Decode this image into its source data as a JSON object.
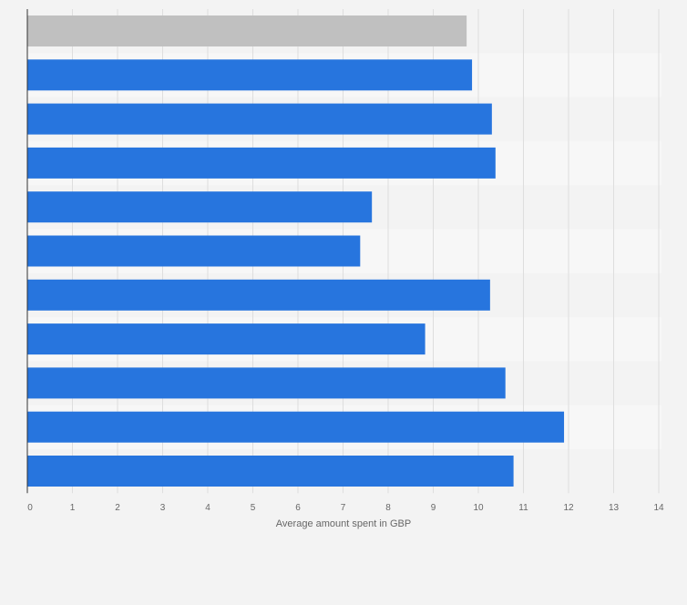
{
  "chart_data": {
    "type": "bar",
    "orientation": "horizontal",
    "title": "",
    "xlabel": "Average amount spent in GBP",
    "ylabel": "",
    "xlim": [
      0,
      14
    ],
    "ticks": [
      0,
      1,
      2,
      3,
      4,
      5,
      6,
      7,
      8,
      9,
      10,
      11,
      12,
      13,
      14
    ],
    "tick_labels": [
      "0",
      "1",
      "2",
      "3",
      "4",
      "5",
      "6",
      "7",
      "8",
      "9",
      "10",
      "11",
      "12",
      "13",
      "14"
    ],
    "categories": [
      "",
      "",
      "",
      "",
      "",
      "",
      "",
      "",
      "",
      "",
      ""
    ],
    "values": [
      9.74,
      9.86,
      10.3,
      10.38,
      7.64,
      7.38,
      10.26,
      8.82,
      10.6,
      11.9,
      10.78
    ],
    "bar_colors": [
      "#c0c0c0",
      "#2775de",
      "#2775de",
      "#2775de",
      "#2775de",
      "#2775de",
      "#2775de",
      "#2775de",
      "#2775de",
      "#2775de",
      "#2775de"
    ],
    "grid": true,
    "legend": "none"
  },
  "colors": {
    "background": "#f3f3f3",
    "band_light": "#f7f7f7",
    "band_dark": "#f3f3f3",
    "grid": "#dedede",
    "axis": "#333333",
    "tick_text": "#666666"
  }
}
